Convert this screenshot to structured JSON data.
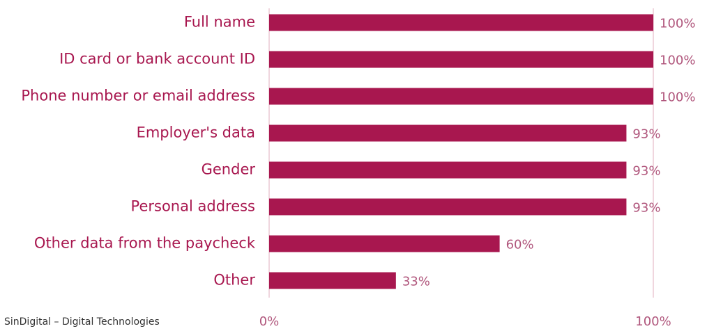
{
  "chart_data": {
    "type": "bar",
    "orientation": "horizontal",
    "categories": [
      "Full name",
      "ID card or bank account ID",
      "Phone number or email address",
      "Employer's data",
      "Gender",
      "Personal address",
      "Other data from the paycheck",
      "Other"
    ],
    "values": [
      100,
      100,
      100,
      93,
      93,
      93,
      60,
      33
    ],
    "value_labels": [
      "100%",
      "100%",
      "100%",
      "93%",
      "93%",
      "93%",
      "60%",
      "33%"
    ],
    "color": "#a8174f",
    "xlim": [
      0,
      100
    ],
    "xticks": [
      {
        "value": 0,
        "label": "0%"
      },
      {
        "value": 100,
        "label": "100%"
      }
    ],
    "grid": true,
    "source": "SinDigital – Digital Technologies"
  }
}
